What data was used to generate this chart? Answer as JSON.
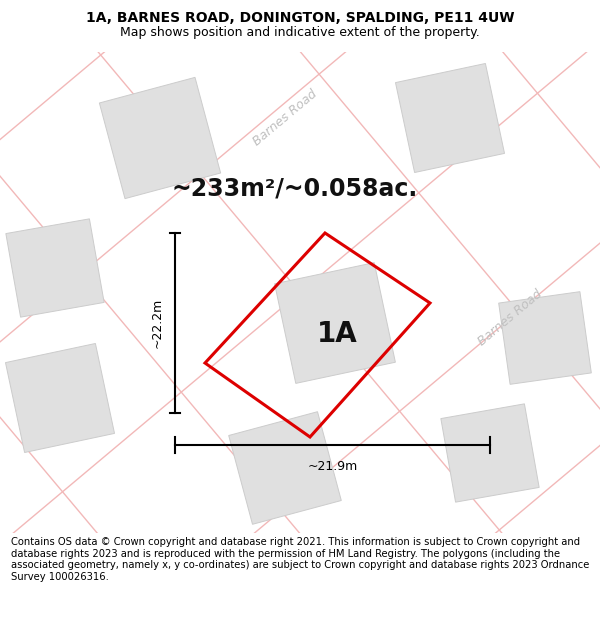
{
  "title": "1A, BARNES ROAD, DONINGTON, SPALDING, PE11 4UW",
  "subtitle": "Map shows position and indicative extent of the property.",
  "area_label": "~233m²/~0.058ac.",
  "dim_width": "~21.9m",
  "dim_height": "~22.2m",
  "property_label": "1A",
  "footer": "Contains OS data © Crown copyright and database right 2021. This information is subject to Crown copyright and database rights 2023 and is reproduced with the permission of HM Land Registry. The polygons (including the associated geometry, namely x, y co-ordinates) are subject to Crown copyright and database rights 2023 Ordnance Survey 100026316.",
  "bg_color": "#ffffff",
  "map_bg": "#ffffff",
  "road_color": "#f2b8b8",
  "building_color": "#e0e0e0",
  "building_edge": "#cccccc",
  "property_edge_color": "#dd0000",
  "title_fontsize": 10,
  "subtitle_fontsize": 9,
  "area_fontsize": 17,
  "label_fontsize": 20,
  "dim_fontsize": 9,
  "footer_fontsize": 7.2,
  "road_lw": 1.0,
  "prop_lw": 2.2,
  "barnes_road_color": "#c0c0c0",
  "barnes_road_fontsize": 9
}
